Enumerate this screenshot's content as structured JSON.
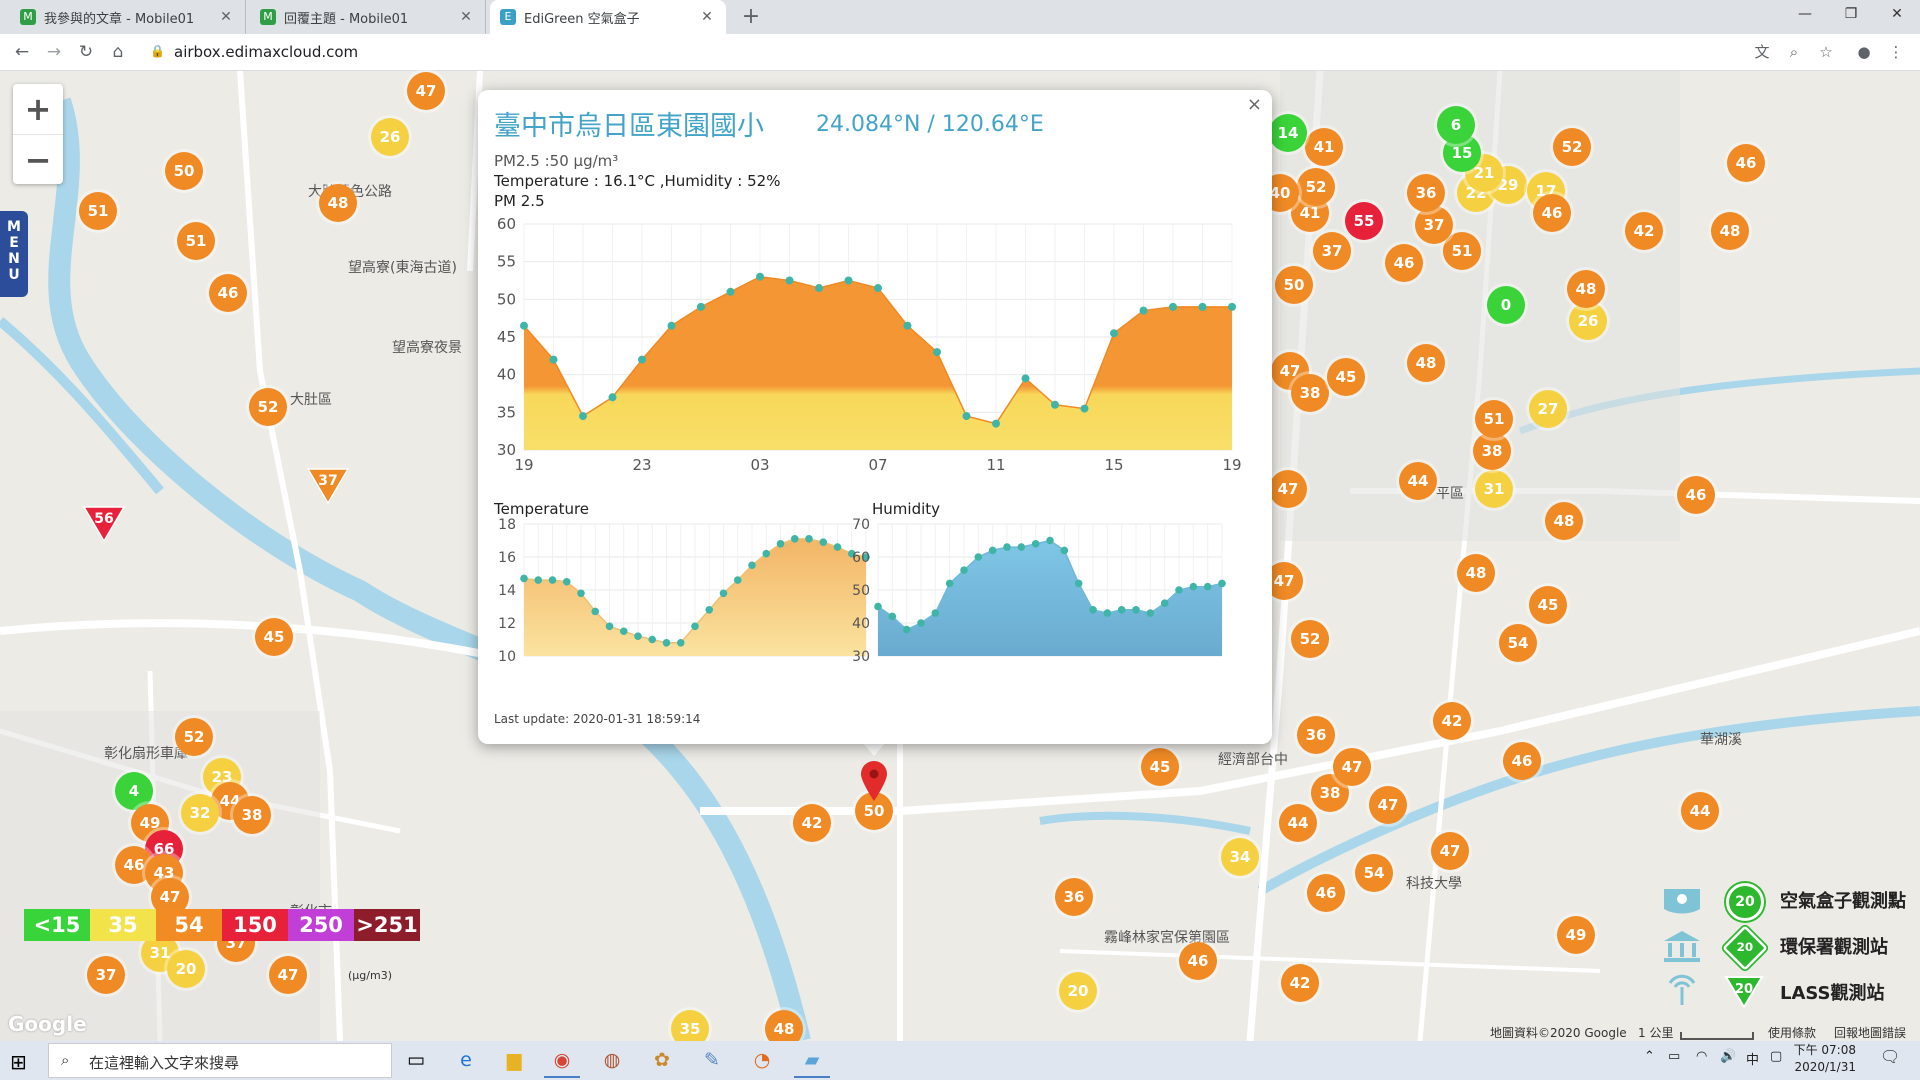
{
  "browser": {
    "tabs": [
      {
        "title": "我參與的文章 - Mobile01",
        "fav": "M"
      },
      {
        "title": "回覆主題 - Mobile01",
        "fav": "M"
      },
      {
        "title": "EdiGreen 空氣盒子",
        "fav": "E"
      }
    ],
    "url": "airbox.edimaxcloud.com",
    "icons": {
      "back": "back-arrow-icon",
      "forward": "forward-arrow-icon",
      "reload": "reload-icon",
      "home": "home-icon",
      "lock": "lock-icon"
    }
  },
  "map": {
    "menu_label": "MENU",
    "zoom_in": "+",
    "zoom_out": "−",
    "place_labels": [
      {
        "text": "大肚區",
        "x": 290,
        "y": 318
      },
      {
        "text": "大肚藍色公路",
        "x": 308,
        "y": 110
      },
      {
        "text": "望高寮(東海古道)",
        "x": 348,
        "y": 186
      },
      {
        "text": "望高寮夜景",
        "x": 392,
        "y": 266
      },
      {
        "text": "彰化扇形車庫",
        "x": 104,
        "y": 672
      },
      {
        "text": "彰化市",
        "x": 290,
        "y": 830
      },
      {
        "text": "霧峰林家宮保第園區",
        "x": 1104,
        "y": 856
      },
      {
        "text": "經濟部台中",
        "x": 1218,
        "y": 678
      },
      {
        "text": "平區",
        "x": 1436,
        "y": 412
      },
      {
        "text": "華湖溪",
        "x": 1700,
        "y": 658
      },
      {
        "text": "科技大學",
        "x": 1406,
        "y": 802
      }
    ],
    "aqi_scale": [
      {
        "label": "<15",
        "color": "#39d43a"
      },
      {
        "label": "35",
        "color": "#f2e34b"
      },
      {
        "label": "54",
        "color": "#f28b23"
      },
      {
        "label": "150",
        "color": "#e8213a"
      },
      {
        "label": "250",
        "color": "#c13fd6"
      },
      {
        "label": ">251",
        "color": "#8e1d2c"
      }
    ],
    "units": "(μg/m3)",
    "google_logo": "Google",
    "legend": [
      {
        "value": "20",
        "label": "空氣盒子觀測點"
      },
      {
        "value": "20",
        "label": "環保署觀測站"
      },
      {
        "value": "20",
        "label": "LASS觀測站"
      }
    ],
    "footer": {
      "map_data": "地圖資料©2020 Google",
      "scale": "1 公里",
      "terms": "使用條款",
      "report": "回報地圖錯誤"
    }
  },
  "popup": {
    "close": "×",
    "title": "臺中市烏日區東園國小",
    "coords": "24.084°N / 120.64°E",
    "pm_line": "PM2.5 :50 μg/m³",
    "temp_humidity_line": "Temperature : 16.1°C ,Humidity : 52%",
    "chart_title": "PM 2.5",
    "temperature_label": "Temperature",
    "humidity_label": "Humidity",
    "last_update": "Last update: 2020-01-31 18:59:14"
  },
  "chart_data": [
    {
      "type": "area",
      "title": "PM 2.5",
      "x_tick_labels": [
        "19",
        "23",
        "03",
        "07",
        "11",
        "15",
        "19"
      ],
      "ylim": [
        30,
        60
      ],
      "y_ticks": [
        30,
        35,
        40,
        45,
        50,
        55,
        60
      ],
      "values": [
        46.5,
        42,
        34.5,
        37,
        42,
        46.5,
        49,
        51,
        53,
        52.5,
        51.5,
        52.5,
        51.5,
        46.5,
        43,
        34.5,
        33.5,
        39.5,
        36,
        35.5,
        45.5,
        48.5,
        49,
        49,
        49
      ],
      "grid": true
    },
    {
      "type": "area",
      "title": "Temperature",
      "ylim": [
        10,
        18
      ],
      "y_ticks": [
        10,
        12,
        14,
        16,
        18
      ],
      "values": [
        14.7,
        14.6,
        14.6,
        14.5,
        13.8,
        12.7,
        11.8,
        11.5,
        11.2,
        11.0,
        10.8,
        10.8,
        11.8,
        12.8,
        13.8,
        14.6,
        15.5,
        16.2,
        16.8,
        17.1,
        17.1,
        16.9,
        16.6,
        16.2,
        16.0
      ],
      "grid": true
    },
    {
      "type": "area",
      "title": "Humidity",
      "ylim": [
        30,
        70
      ],
      "y_ticks": [
        30,
        40,
        50,
        60,
        70
      ],
      "values": [
        45,
        42,
        38,
        40,
        43,
        52,
        56,
        60,
        62,
        63,
        63,
        64,
        65,
        62,
        52,
        44,
        43,
        44,
        44,
        43,
        46,
        50,
        51,
        51,
        52
      ],
      "grid": true
    }
  ],
  "markers": [
    {
      "v": "47",
      "c": "orange",
      "x": 426,
      "y": 20
    },
    {
      "v": "26",
      "c": "yellow",
      "x": 390,
      "y": 66
    },
    {
      "v": "50",
      "c": "orange",
      "x": 184,
      "y": 100
    },
    {
      "v": "51",
      "c": "orange",
      "x": 98,
      "y": 140
    },
    {
      "v": "48",
      "c": "orange",
      "x": 338,
      "y": 132
    },
    {
      "v": "51",
      "c": "orange",
      "x": 196,
      "y": 170
    },
    {
      "v": "46",
      "c": "orange",
      "x": 228,
      "y": 222
    },
    {
      "v": "52",
      "c": "orange",
      "x": 268,
      "y": 336
    },
    {
      "v": "45",
      "c": "orange",
      "x": 274,
      "y": 566
    },
    {
      "v": "52",
      "c": "orange",
      "x": 194,
      "y": 666
    },
    {
      "v": "23",
      "c": "yellow",
      "x": 222,
      "y": 706
    },
    {
      "v": "4",
      "c": "green",
      "x": 134,
      "y": 720
    },
    {
      "v": "44",
      "c": "orange",
      "x": 230,
      "y": 730
    },
    {
      "v": "32",
      "c": "yellow",
      "x": 200,
      "y": 742
    },
    {
      "v": "38",
      "c": "orange",
      "x": 252,
      "y": 744
    },
    {
      "v": "49",
      "c": "orange",
      "x": 150,
      "y": 752
    },
    {
      "v": "66",
      "c": "red",
      "x": 164,
      "y": 778
    },
    {
      "v": "46",
      "c": "orange",
      "x": 134,
      "y": 794
    },
    {
      "v": "43",
      "c": "orange",
      "x": 164,
      "y": 802
    },
    {
      "v": "47",
      "c": "orange",
      "x": 170,
      "y": 826
    },
    {
      "v": "37",
      "c": "orange",
      "x": 236,
      "y": 872
    },
    {
      "v": "31",
      "c": "yellow",
      "x": 160,
      "y": 882
    },
    {
      "v": "20",
      "c": "yellow",
      "x": 186,
      "y": 898
    },
    {
      "v": "37",
      "c": "orange",
      "x": 106,
      "y": 904
    },
    {
      "v": "47",
      "c": "orange",
      "x": 288,
      "y": 904
    },
    {
      "v": "35",
      "c": "yellow",
      "x": 690,
      "y": 958
    },
    {
      "v": "48",
      "c": "orange",
      "x": 784,
      "y": 958
    },
    {
      "v": "42",
      "c": "orange",
      "x": 812,
      "y": 752
    },
    {
      "v": "50",
      "c": "orange",
      "x": 874,
      "y": 740
    },
    {
      "v": "45",
      "c": "orange",
      "x": 1160,
      "y": 696
    },
    {
      "v": "36",
      "c": "orange",
      "x": 1074,
      "y": 826
    },
    {
      "v": "20",
      "c": "yellow",
      "x": 1078,
      "y": 920
    },
    {
      "v": "46",
      "c": "orange",
      "x": 1198,
      "y": 890
    },
    {
      "v": "42",
      "c": "orange",
      "x": 1300,
      "y": 912
    },
    {
      "v": "34",
      "c": "yellow",
      "x": 1240,
      "y": 786
    },
    {
      "v": "44",
      "c": "orange",
      "x": 1298,
      "y": 752
    },
    {
      "v": "46",
      "c": "orange",
      "x": 1326,
      "y": 822
    },
    {
      "v": "38",
      "c": "orange",
      "x": 1330,
      "y": 722
    },
    {
      "v": "47",
      "c": "orange",
      "x": 1352,
      "y": 696
    },
    {
      "v": "47",
      "c": "orange",
      "x": 1388,
      "y": 734
    },
    {
      "v": "36",
      "c": "orange",
      "x": 1316,
      "y": 664
    },
    {
      "v": "54",
      "c": "orange",
      "x": 1374,
      "y": 802
    },
    {
      "v": "47",
      "c": "orange",
      "x": 1450,
      "y": 780
    },
    {
      "v": "42",
      "c": "orange",
      "x": 1452,
      "y": 650
    },
    {
      "v": "46",
      "c": "orange",
      "x": 1522,
      "y": 690
    },
    {
      "v": "44",
      "c": "orange",
      "x": 1700,
      "y": 740
    },
    {
      "v": "49",
      "c": "orange",
      "x": 1576,
      "y": 864
    },
    {
      "v": "52",
      "c": "orange",
      "x": 1310,
      "y": 568
    },
    {
      "v": "47",
      "c": "orange",
      "x": 1284,
      "y": 510
    },
    {
      "v": "54",
      "c": "orange",
      "x": 1518,
      "y": 572
    },
    {
      "v": "45",
      "c": "orange",
      "x": 1548,
      "y": 534
    },
    {
      "v": "48",
      "c": "orange",
      "x": 1476,
      "y": 502
    },
    {
      "v": "48",
      "c": "orange",
      "x": 1564,
      "y": 450
    },
    {
      "v": "46",
      "c": "orange",
      "x": 1696,
      "y": 424
    },
    {
      "v": "31",
      "c": "yellow",
      "x": 1494,
      "y": 418
    },
    {
      "v": "44",
      "c": "orange",
      "x": 1418,
      "y": 410
    },
    {
      "v": "38",
      "c": "orange",
      "x": 1492,
      "y": 380
    },
    {
      "v": "51",
      "c": "orange",
      "x": 1494,
      "y": 348
    },
    {
      "v": "27",
      "c": "yellow",
      "x": 1548,
      "y": 338
    },
    {
      "v": "47",
      "c": "orange",
      "x": 1288,
      "y": 418
    },
    {
      "v": "47",
      "c": "orange",
      "x": 1290,
      "y": 300
    },
    {
      "v": "38",
      "c": "orange",
      "x": 1310,
      "y": 322
    },
    {
      "v": "45",
      "c": "orange",
      "x": 1346,
      "y": 306
    },
    {
      "v": "48",
      "c": "orange",
      "x": 1426,
      "y": 292
    },
    {
      "v": "26",
      "c": "yellow",
      "x": 1588,
      "y": 250
    },
    {
      "v": "48",
      "c": "orange",
      "x": 1586,
      "y": 218
    },
    {
      "v": "0",
      "c": "green",
      "x": 1506,
      "y": 234
    },
    {
      "v": "50",
      "c": "orange",
      "x": 1294,
      "y": 214
    },
    {
      "v": "37",
      "c": "orange",
      "x": 1332,
      "y": 180
    },
    {
      "v": "46",
      "c": "orange",
      "x": 1404,
      "y": 192
    },
    {
      "v": "51",
      "c": "orange",
      "x": 1462,
      "y": 180
    },
    {
      "v": "37",
      "c": "orange",
      "x": 1434,
      "y": 154
    },
    {
      "v": "55",
      "c": "red",
      "x": 1364,
      "y": 150
    },
    {
      "v": "41",
      "c": "orange",
      "x": 1310,
      "y": 142
    },
    {
      "v": "36",
      "c": "orange",
      "x": 1426,
      "y": 122
    },
    {
      "v": "22",
      "c": "yellow",
      "x": 1476,
      "y": 122
    },
    {
      "v": "29",
      "c": "yellow",
      "x": 1508,
      "y": 114
    },
    {
      "v": "17",
      "c": "yellow",
      "x": 1546,
      "y": 120
    },
    {
      "v": "46",
      "c": "orange",
      "x": 1552,
      "y": 142
    },
    {
      "v": "21",
      "c": "yellow",
      "x": 1484,
      "y": 102
    },
    {
      "v": "52",
      "c": "orange",
      "x": 1316,
      "y": 116
    },
    {
      "v": "41",
      "c": "orange",
      "x": 1324,
      "y": 76
    },
    {
      "v": "14",
      "c": "green",
      "x": 1288,
      "y": 62
    },
    {
      "v": "15",
      "c": "green",
      "x": 1462,
      "y": 82
    },
    {
      "v": "6",
      "c": "green",
      "x": 1456,
      "y": 54
    },
    {
      "v": "52",
      "c": "orange",
      "x": 1572,
      "y": 76
    },
    {
      "v": "46",
      "c": "orange",
      "x": 1746,
      "y": 92
    },
    {
      "v": "42",
      "c": "orange",
      "x": 1644,
      "y": 160
    },
    {
      "v": "48",
      "c": "orange",
      "x": 1730,
      "y": 160
    },
    {
      "v": "40",
      "c": "orange",
      "x": 1280,
      "y": 122
    }
  ],
  "map_triangles": [
    {
      "v": "56",
      "x": 104,
      "y": 448,
      "c": "#e8213a"
    },
    {
      "v": "37",
      "x": 328,
      "y": 410,
      "c": "#f08a24"
    }
  ],
  "taskbar": {
    "search_placeholder": "在這裡輸入文字來搜尋",
    "time": "下午 07:08",
    "date": "2020/1/31",
    "ime": "中"
  }
}
